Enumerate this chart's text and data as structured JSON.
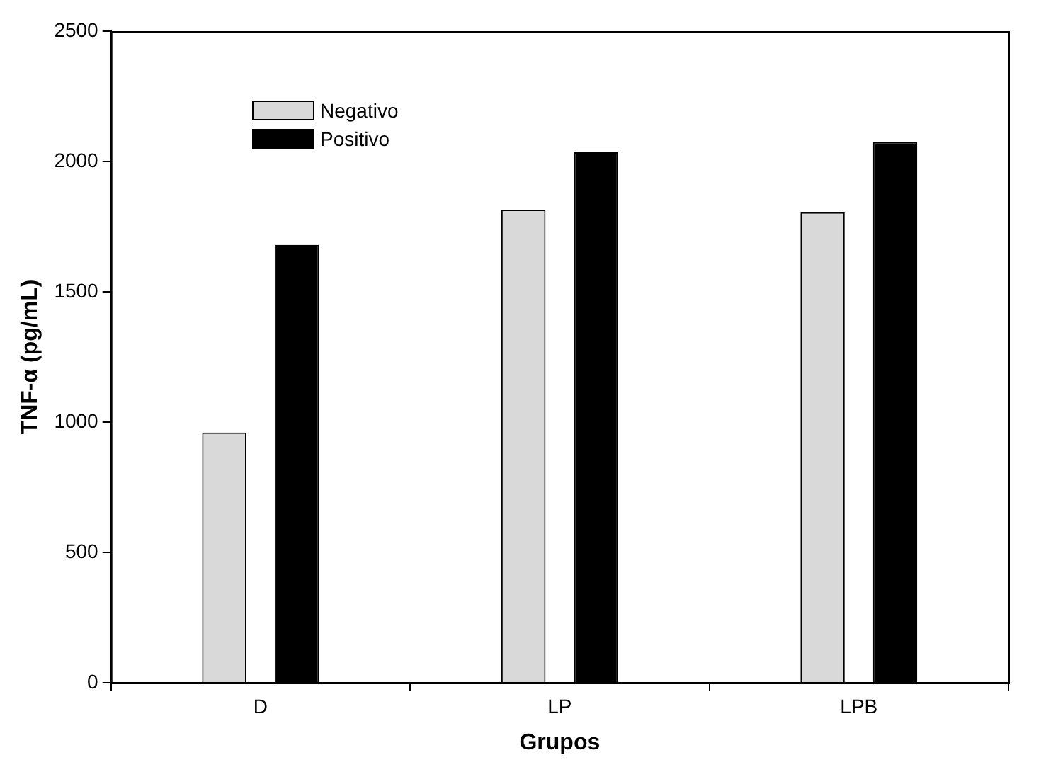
{
  "chart_data": {
    "type": "bar",
    "xlabel": "Grupos",
    "ylabel": "TNF-α (pg/mL)",
    "categories": [
      "D",
      "LP",
      "LPB"
    ],
    "series": [
      {
        "name": "Negativo",
        "color": "#d9d9d9",
        "values": [
          960,
          1815,
          1805
        ]
      },
      {
        "name": "Positivo",
        "color": "#000000",
        "values": [
          1680,
          2035,
          2075
        ]
      }
    ],
    "ylim": [
      0,
      2500
    ],
    "yticks": [
      0,
      500,
      1000,
      1500,
      2000,
      2500
    ],
    "grid": false,
    "legend": "top left"
  }
}
